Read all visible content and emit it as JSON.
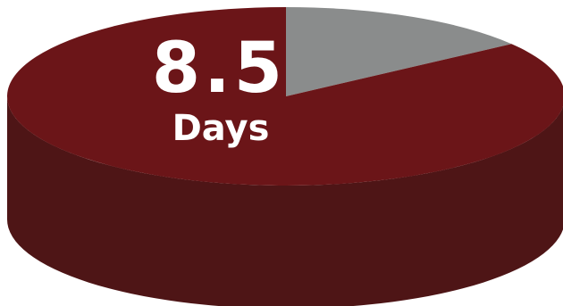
{
  "chart_data": {
    "type": "pie",
    "three_d": true,
    "slices": [
      {
        "value": 8.5,
        "color": "#6b1518",
        "side_color": "#4e1516"
      },
      {
        "value": 1.5,
        "color": "#8a8c8c",
        "side_color": "#5e6060"
      }
    ],
    "center_label": {
      "value": "8.5",
      "unit": "Days"
    },
    "title": "",
    "legend": "none"
  }
}
